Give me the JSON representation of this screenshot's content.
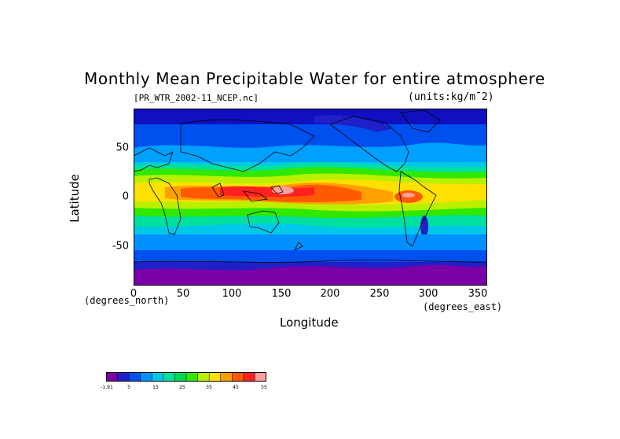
{
  "title": "Monthly Mean Precipitable Water for entire atmosphere",
  "file_label": "[PR_WTR_2002-11_NCEP.nc]",
  "units_label": "(units:kg/m^2)",
  "axes": {
    "ylabel": "Latitude",
    "y_units_label": "(degrees_north)",
    "xlabel": "Longitude",
    "x_units_label": "(degrees_east)",
    "yticks": [
      "50",
      "0",
      "-50"
    ],
    "xticks": [
      "0",
      "50",
      "100",
      "150",
      "200",
      "250",
      "300",
      "350"
    ],
    "xlim": [
      0,
      360
    ],
    "ylim": [
      -90,
      90
    ]
  },
  "colorbar": {
    "labels": [
      "-1.91",
      "5",
      "15",
      "25",
      "35",
      "45",
      "55"
    ],
    "colors": [
      "#7a00a8",
      "#2020c8",
      "#0050f0",
      "#0090ff",
      "#00c8e8",
      "#00e0a0",
      "#00d850",
      "#30e800",
      "#b8f000",
      "#ffe000",
      "#ffa000",
      "#ff5a00",
      "#ff2020",
      "#ffa0a0"
    ]
  }
}
